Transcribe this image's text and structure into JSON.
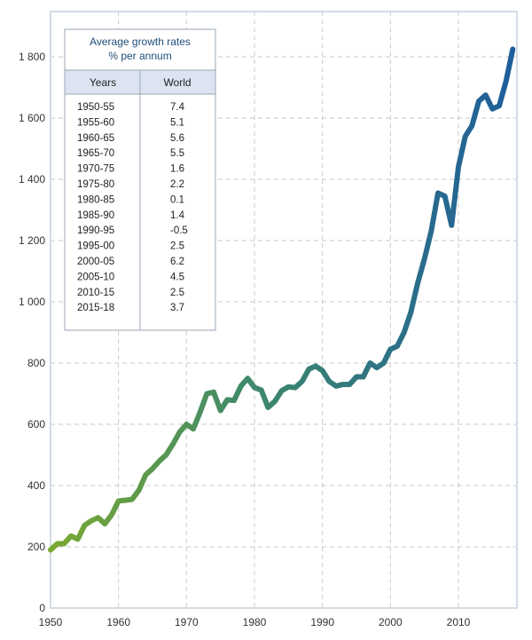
{
  "chart_data": {
    "type": "line",
    "title": "",
    "xlabel": "",
    "ylabel": "",
    "xlim": [
      1950,
      2018
    ],
    "ylim": [
      0,
      1850
    ],
    "x_ticks": [
      1950,
      1960,
      1970,
      1980,
      1990,
      2000,
      2010
    ],
    "x_tick_labels": [
      "1950",
      "1960",
      "1970",
      "1980",
      "1990",
      "2000",
      "2010"
    ],
    "y_ticks": [
      0,
      200,
      400,
      600,
      800,
      1000,
      1200,
      1400,
      1600,
      1800
    ],
    "y_tick_labels": [
      "0",
      "200",
      "400",
      "600",
      "800",
      "1 000",
      "1 200",
      "1 400",
      "1 600",
      "1 800"
    ],
    "grid": true,
    "line_colors": {
      "start": "#7aa832",
      "end": "#1e5d9c"
    },
    "series": [
      {
        "x": [
          1950,
          1951,
          1952,
          1953,
          1954,
          1955,
          1956,
          1957,
          1958,
          1959,
          1960,
          1961,
          1962,
          1963,
          1964,
          1965,
          1966,
          1967,
          1968,
          1969,
          1970,
          1971,
          1972,
          1973,
          1974,
          1975,
          1976,
          1977,
          1978,
          1979,
          1980,
          1981,
          1982,
          1983,
          1984,
          1985,
          1986,
          1987,
          1988,
          1989,
          1990,
          1991,
          1992,
          1993,
          1994,
          1995,
          1996,
          1997,
          1998,
          1999,
          2000,
          2001,
          2002,
          2003,
          2004,
          2005,
          2006,
          2007,
          2008,
          2009,
          2010,
          2011,
          2012,
          2013,
          2014,
          2015,
          2016,
          2017,
          2018
        ],
        "values": [
          190,
          210,
          210,
          235,
          225,
          270,
          285,
          295,
          275,
          305,
          350,
          352,
          355,
          385,
          435,
          455,
          480,
          500,
          535,
          575,
          600,
          585,
          640,
          700,
          705,
          645,
          680,
          678,
          725,
          750,
          720,
          712,
          655,
          675,
          710,
          722,
          720,
          740,
          780,
          790,
          775,
          740,
          725,
          730,
          730,
          755,
          755,
          800,
          785,
          800,
          845,
          855,
          900,
          965,
          1060,
          1140,
          1230,
          1355,
          1345,
          1250,
          1440,
          1540,
          1575,
          1655,
          1675,
          1630,
          1640,
          1720,
          1825
        ]
      }
    ],
    "annotations": {
      "table": {
        "title_line1": "Average growth rates",
        "title_line2": "% per annum",
        "col_years": "Years",
        "col_world": "World",
        "rows": [
          [
            "1950-55",
            "7.4"
          ],
          [
            "1955-60",
            "5.1"
          ],
          [
            "1960-65",
            "5.6"
          ],
          [
            "1965-70",
            "5.5"
          ],
          [
            "1970-75",
            "1.6"
          ],
          [
            "1975-80",
            "2.2"
          ],
          [
            "1980-85",
            "0.1"
          ],
          [
            "1985-90",
            "1.4"
          ],
          [
            "1990-95",
            "-0.5"
          ],
          [
            "1995-00",
            "2.5"
          ],
          [
            "2000-05",
            "6.2"
          ],
          [
            "2005-10",
            "4.5"
          ],
          [
            "2010-15",
            "2.5"
          ],
          [
            "2015-18",
            "3.7"
          ]
        ]
      }
    }
  }
}
